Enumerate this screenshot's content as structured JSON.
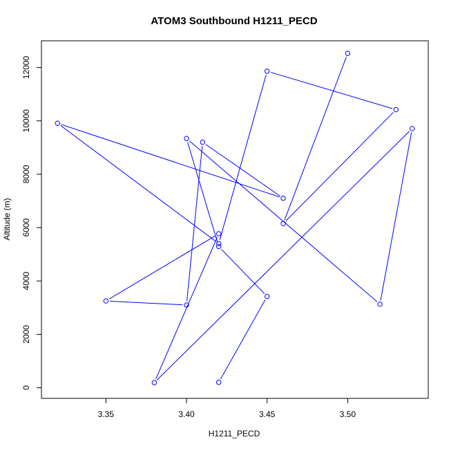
{
  "chart_data": {
    "type": "line",
    "title": "ATOM3 Southbound H1211_PECD",
    "xlabel": "H1211_PECD",
    "ylabel": "Altitude (m)",
    "xlim": [
      3.31,
      3.55
    ],
    "ylim": [
      -400,
      13000
    ],
    "x_ticks": [
      3.35,
      3.4,
      3.45,
      3.5
    ],
    "x_tick_labels": [
      "3.35",
      "3.40",
      "3.45",
      "3.50"
    ],
    "y_ticks": [
      0,
      2000,
      4000,
      6000,
      8000,
      10000,
      12000
    ],
    "y_tick_labels": [
      "0",
      "2000",
      "4000",
      "6000",
      "8000",
      "10000",
      "12000"
    ],
    "grid": false,
    "legend": "none",
    "series": [
      {
        "color": "#0000ff",
        "marker": "open-circle",
        "points": [
          {
            "x": 3.42,
            "y": 200
          },
          {
            "x": 3.45,
            "y": 3420
          },
          {
            "x": 3.42,
            "y": 5290
          },
          {
            "x": 3.4,
            "y": 9340
          },
          {
            "x": 3.52,
            "y": 3130
          },
          {
            "x": 3.54,
            "y": 9710
          },
          {
            "x": 3.38,
            "y": 190
          },
          {
            "x": 3.42,
            "y": 5770
          },
          {
            "x": 3.35,
            "y": 3250
          },
          {
            "x": 3.4,
            "y": 3100
          },
          {
            "x": 3.41,
            "y": 9200
          },
          {
            "x": 3.46,
            "y": 7100
          },
          {
            "x": 3.32,
            "y": 9910
          },
          {
            "x": 3.42,
            "y": 5400
          },
          {
            "x": 3.45,
            "y": 11860
          },
          {
            "x": 3.53,
            "y": 10420
          },
          {
            "x": 3.46,
            "y": 6150
          },
          {
            "x": 3.5,
            "y": 12530
          }
        ]
      }
    ]
  }
}
